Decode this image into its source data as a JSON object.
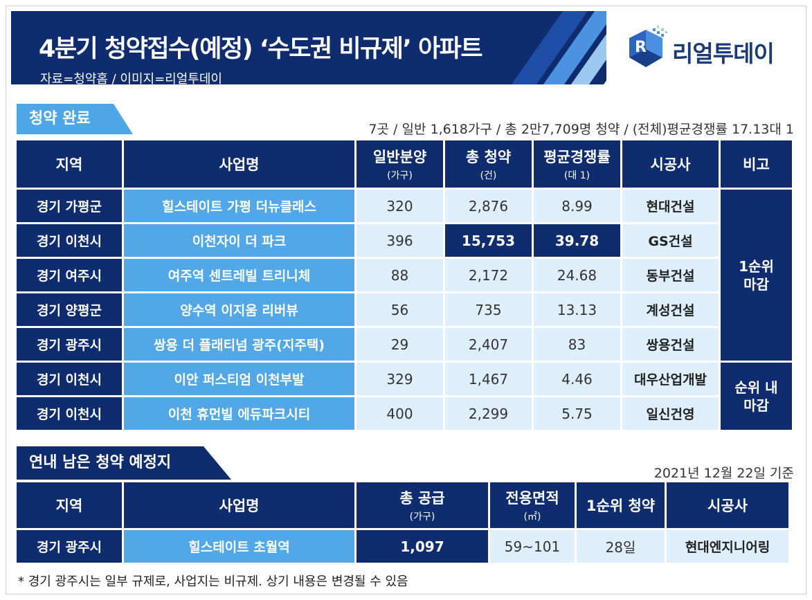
{
  "header": {
    "title": "4분기 청약접수(예정) ‘수도권 비규제’ 아파트",
    "source": "자료=청약홈 / 이미지=리얼투데이",
    "logo_text": "리얼투데이"
  },
  "completed": {
    "section_label": "청약 완료",
    "summary": "7곳 / 일반 1,618가구 / 총 2만7,709명 청약 / (전체)평균경쟁률 17.13대 1",
    "columns": {
      "region": "지역",
      "project": "사업명",
      "supply": "일반분양",
      "supply_unit": "(가구)",
      "applicants": "총 청약",
      "applicants_unit": "(건)",
      "ratio": "평균경쟁률",
      "ratio_unit": "(대 1)",
      "builder": "시공사",
      "remark": "비고"
    },
    "rows": [
      {
        "region": "경기 가평군",
        "project": "힐스테이트 가평 더뉴클래스",
        "supply": "320",
        "applicants": "2,876",
        "ratio": "8.99",
        "builder": "현대건설"
      },
      {
        "region": "경기 이천시",
        "project": "이천자이 더 파크",
        "supply": "396",
        "applicants": "15,753",
        "ratio": "39.78",
        "builder": "GS건설"
      },
      {
        "region": "경기 여주시",
        "project": "여주역 센트레빌 트리니체",
        "supply": "88",
        "applicants": "2,172",
        "ratio": "24.68",
        "builder": "동부건설"
      },
      {
        "region": "경기 양평군",
        "project": "양수역 이지움 리버뷰",
        "supply": "56",
        "applicants": "735",
        "ratio": "13.13",
        "builder": "계성건설"
      },
      {
        "region": "경기 광주시",
        "project": "쌍용 더 플래티넘 광주(지주택)",
        "supply": "29",
        "applicants": "2,407",
        "ratio": "83",
        "builder": "쌍용건설"
      },
      {
        "region": "경기 이천시",
        "project": "이안 퍼스티엄 이천부발",
        "supply": "329",
        "applicants": "1,467",
        "ratio": "4.46",
        "builder": "대우산업개발"
      },
      {
        "region": "경기 이천시",
        "project": "이천 휴먼빌 에듀파크시티",
        "supply": "400",
        "applicants": "2,299",
        "ratio": "5.75",
        "builder": "일신건영"
      }
    ],
    "remarks": {
      "first_line1": "1순위",
      "first_line2": "마감",
      "within_line1": "순위 내",
      "within_line2": "마감"
    }
  },
  "upcoming": {
    "section_label": "연내 남은 청약 예정지",
    "base_date": "2021년 12월 22일 기준",
    "columns": {
      "region": "지역",
      "project": "사업명",
      "supply": "총 공급",
      "supply_unit": "(가구)",
      "area": "전용면적",
      "area_unit": "(㎡)",
      "first_date": "1순위 청약",
      "builder": "시공사"
    },
    "rows": [
      {
        "region": "경기 광주시",
        "project": "힐스테이트 초월역",
        "supply": "1,097",
        "area": "59~101",
        "first_date": "28일",
        "builder": "현대엔지니어링"
      }
    ]
  },
  "footnote": "* 경기 광주시는 일부 규제로, 사업지는 비규제. 상기 내용은  변경될 수 있음",
  "colors": {
    "navy": "#0f2d6e",
    "sky": "#52a7e6",
    "light": "#dfeefb"
  }
}
